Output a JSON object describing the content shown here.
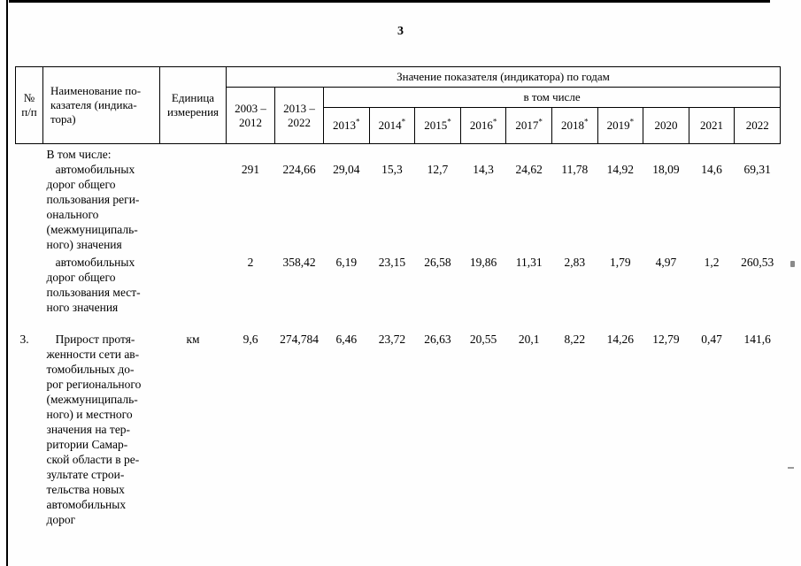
{
  "page": {
    "number": "3"
  },
  "table": {
    "header": {
      "num": "№\nп/п",
      "name": "Наименование по-\nказателя (индика-\nтора)",
      "unit": "Единица\nизмерения",
      "group": "Значение показателя (индикатора) по годам",
      "including": "в том числе",
      "period1": "2003 –\n2012",
      "period2": "2013 –\n2022",
      "years": [
        {
          "label": "2013",
          "star": "*"
        },
        {
          "label": "2014",
          "star": "*"
        },
        {
          "label": "2015",
          "star": "*"
        },
        {
          "label": "2016",
          "star": "*"
        },
        {
          "label": "2017",
          "star": "*"
        },
        {
          "label": "2018",
          "star": "*"
        },
        {
          "label": "2019",
          "star": "*"
        },
        {
          "label": "2020",
          "star": ""
        },
        {
          "label": "2021",
          "star": ""
        },
        {
          "label": "2022",
          "star": ""
        }
      ]
    },
    "rows": [
      {
        "num": "",
        "name": "В том числе:\n   автомобильных\nдорог общего\nпользования реги-\nонального\n(межмуниципаль-\nного) значения",
        "unit": "",
        "values": [
          "291",
          "224,66",
          "29,04",
          "15,3",
          "12,7",
          "14,3",
          "24,62",
          "11,78",
          "14,92",
          "18,09",
          "14,6",
          "69,31"
        ],
        "values_offset": 1,
        "gap_top": false
      },
      {
        "num": "",
        "name": "   автомобильных\nдорог общего\nпользования мест-\nного значения",
        "unit": "",
        "values": [
          "2",
          "358,42",
          "6,19",
          "23,15",
          "26,58",
          "19,86",
          "11,31",
          "2,83",
          "1,79",
          "4,97",
          "1,2",
          "260,53"
        ],
        "values_offset": 0,
        "gap_top": false
      },
      {
        "num": "3.",
        "name": "   Прирост протя-\nженности сети ав-\nтомобильных до-\nрог регионального\n(межмуниципаль-\nного) и местного\nзначения на тер-\nритории Самар-\nской области в ре-\nзультате строи-\nтельства новых\nавтомобильных\nдорог",
        "unit": "км",
        "values": [
          "9,6",
          "274,784",
          "6,46",
          "23,72",
          "26,63",
          "20,55",
          "20,1",
          "8,22",
          "14,26",
          "12,79",
          "0,47",
          "141,6"
        ],
        "values_offset": 0,
        "gap_top": true
      }
    ]
  }
}
